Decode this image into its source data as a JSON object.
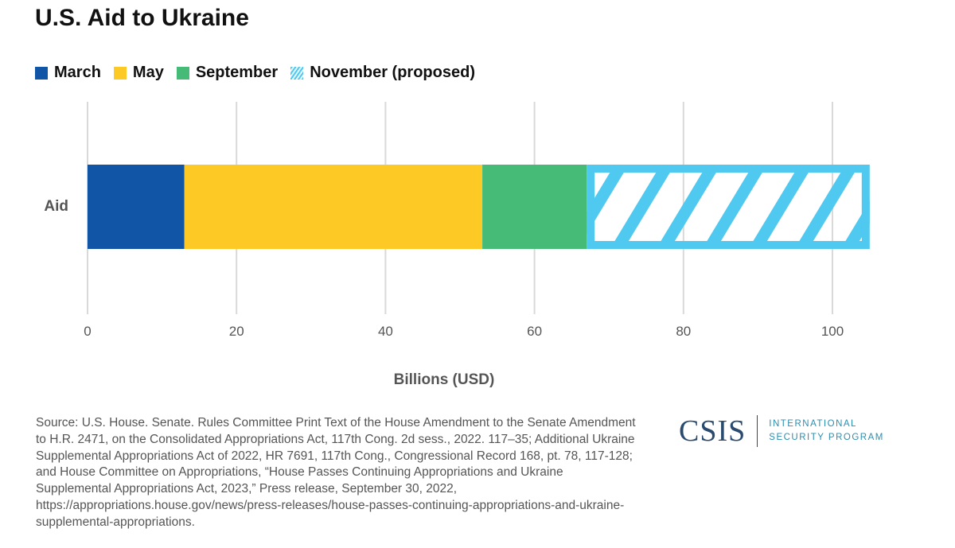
{
  "chart_data": {
    "type": "bar",
    "orientation": "horizontal",
    "stacked": true,
    "title": "U.S. Aid to Ukraine",
    "categories": [
      "Aid"
    ],
    "series": [
      {
        "name": "March",
        "values": [
          13
        ],
        "color": "#1155a6",
        "pattern": "solid"
      },
      {
        "name": "May",
        "values": [
          40
        ],
        "color": "#fdc925",
        "pattern": "solid"
      },
      {
        "name": "September",
        "values": [
          14
        ],
        "color": "#45bb77",
        "pattern": "solid"
      },
      {
        "name": "November (proposed)",
        "values": [
          38
        ],
        "color": "#4fc9f0",
        "pattern": "hatched"
      }
    ],
    "xlabel": "Billions (USD)",
    "ylabel": "",
    "xlim": [
      0,
      100
    ],
    "xticks": [
      "0",
      "20",
      "40",
      "60",
      "80",
      "100"
    ],
    "grid": true,
    "legend": "top-left"
  },
  "source": "Source: U.S. House. Senate. Rules Committee Print Text of the House Amendment to the Senate Amendment to H.R. 2471, on the Consolidated Appropriations Act, 117th Cong. 2d sess., 2022. 117–35; Additional Ukraine Supplemental Appropriations Act of 2022, HR 7691, 117th Cong., Congressional Record 168, pt. 78, 117-128; and House Committee on Appropriations, “House Passes Continuing Appropriations and Ukraine Supplemental Appropriations Act, 2023,” Press release, September 30, 2022, https://appropriations.house.gov/news/press-releases/house-passes-continuing-appropriations-and-ukraine-supplemental-appropriations.",
  "logo": {
    "name": "CSIS",
    "line1": "INTERNATIONAL",
    "line2": "SECURITY PROGRAM"
  }
}
